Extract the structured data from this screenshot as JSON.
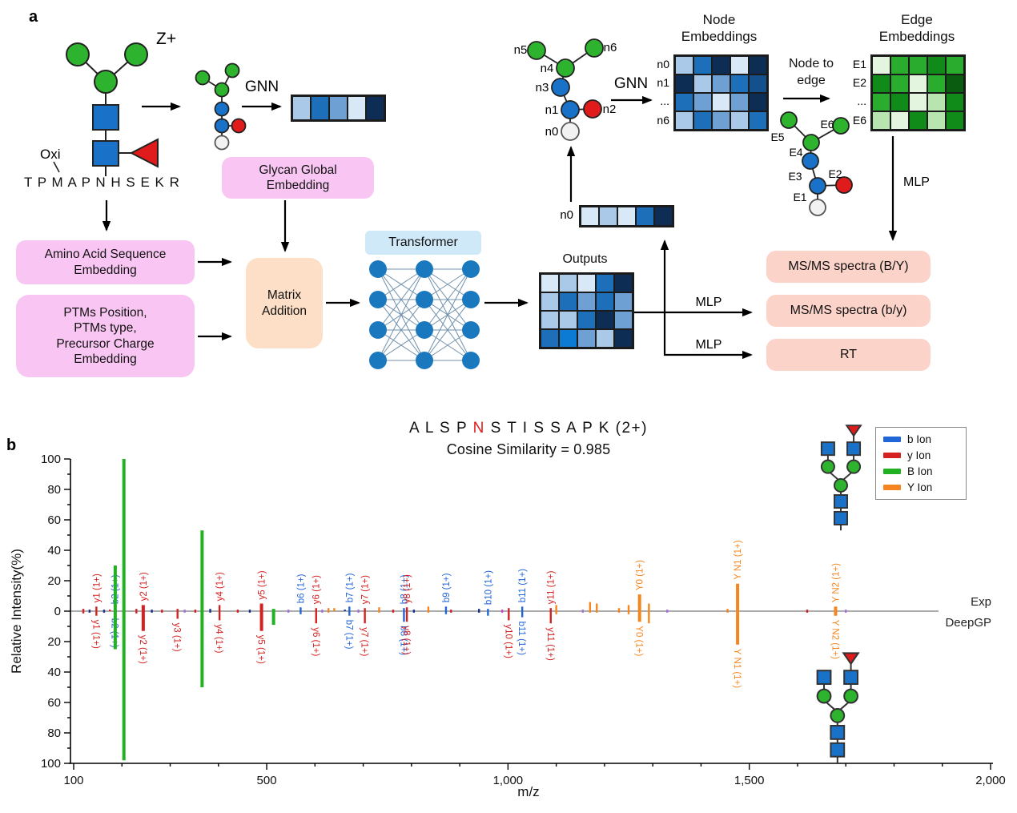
{
  "panel_a": {
    "label": "a",
    "z_plus": "Z+",
    "oxi": "Oxi",
    "peptide": "T P M A P N H S E K R",
    "gnn1": "GNN",
    "gnn2": "GNN",
    "node_to_edge_1": "Node to",
    "node_to_edge_2": "edge",
    "outputs_title": "Outputs",
    "mlp_by": "MLP",
    "mlp_rt": "MLP",
    "mlp_edge": "MLP",
    "n0_vector_label": "n0",
    "boxes": {
      "glycan_global_1": "Glycan Global",
      "glycan_global_2": "Embedding",
      "aa_1": "Amino Acid Sequence",
      "aa_2": "Embedding",
      "ptms_1": "PTMs Position,",
      "ptms_2": "PTMs type,",
      "ptms_3": "Precursor Charge",
      "ptms_4": "Embedding",
      "matrix_1": "Matrix",
      "matrix_2": "Addition",
      "transformer": "Transformer",
      "msms_BY": "MS/MS spectra (B/Y)",
      "msms_by": "MS/MS spectra (b/y)",
      "rt": "RT"
    },
    "node_graph_labels": {
      "n0": "n0",
      "n1": "n1",
      "n2": "n2",
      "n3": "n3",
      "n4": "n4",
      "n5": "n5",
      "n6": "n6"
    },
    "edge_graph_labels": {
      "E1": "E1",
      "E2": "E2",
      "E3": "E3",
      "E4": "E4",
      "E5": "E5",
      "E6": "E6"
    },
    "node_embeddings": {
      "title_1": "Node",
      "title_2": "Embeddings",
      "row_labels": [
        "n0",
        "n1",
        "...",
        "n6"
      ],
      "grid": [
        [
          "l",
          "mb",
          "dk",
          "vl",
          "dk"
        ],
        [
          "dk",
          "l",
          "m",
          "mb",
          "d"
        ],
        [
          "mb",
          "m",
          "vl",
          "m",
          "dk"
        ],
        [
          "l",
          "mb",
          "m",
          "l",
          "mb"
        ]
      ]
    },
    "edge_embeddings": {
      "title_1": "Edge",
      "title_2": "Embeddings",
      "row_labels": [
        "E1",
        "E2",
        "...",
        "E6"
      ],
      "grid": [
        [
          "gvl",
          "g",
          "g",
          "gd",
          "g"
        ],
        [
          "gd",
          "g",
          "gvl",
          "g",
          "gdk"
        ],
        [
          "g",
          "gd",
          "gvl",
          "gl",
          "gd"
        ],
        [
          "gl",
          "gvl",
          "gd",
          "gl",
          "gd"
        ]
      ]
    },
    "outputs_grid": [
      [
        "vl",
        "l",
        "vl",
        "mb",
        "dk"
      ],
      [
        "l",
        "mb",
        "m",
        "mb",
        "m"
      ],
      [
        "l",
        "l",
        "mb",
        "dk",
        "m"
      ],
      [
        "mb",
        "br",
        "m",
        "l",
        "dk"
      ]
    ],
    "glycan_vector": [
      "l",
      "mb",
      "m",
      "vl",
      "dk"
    ],
    "n0_vector": [
      "vl",
      "l",
      "vl",
      "mb",
      "dk"
    ]
  },
  "panel_b": {
    "label": "b",
    "exp_label": "Exp",
    "deepgp_label": "DeepGP"
  },
  "chart_data": {
    "type": "mirrored_ms2_spectrum",
    "title": {
      "seq_before": "A L S P ",
      "glyco_site": "N",
      "seq_after": " S T I S S A P K ",
      "charge": "(2+)"
    },
    "subtitle": "Cosine Similarity = 0.985",
    "xlabel": "m/z",
    "ylabel": "Relative Intensity(%)",
    "xlim": [
      100,
      2000
    ],
    "ylim": [
      -100,
      100
    ],
    "x_major_ticks": [
      100,
      500,
      1000,
      1500,
      2000
    ],
    "x_major_tick_labels": [
      "100",
      "500",
      "1,000",
      "1,500",
      "2,000"
    ],
    "x_minor_step": 100,
    "y_major_step": 20,
    "y_minor_step": 10,
    "top_series_label": "Exp",
    "bottom_series_label": "DeepGP",
    "legend": [
      {
        "label": "b Ion",
        "color": "#2166d8"
      },
      {
        "label": "y Ion",
        "color": "#d42020"
      },
      {
        "label": "B Ion",
        "color": "#22b122"
      },
      {
        "label": "Y Ion",
        "color": "#f5861f"
      }
    ],
    "peaks": [
      {
        "mz": 147.11,
        "ion": "y",
        "label": "y1",
        "exp": 3,
        "pred": -3,
        "lt": 1,
        "lb": 1
      },
      {
        "mz": 185.13,
        "ion": "b",
        "label": "b2",
        "exp": 2,
        "pred": -2,
        "lt": 1,
        "lb": 1
      },
      {
        "mz": 186.08,
        "ion": "B",
        "exp": 30,
        "pred": -25,
        "w": 4
      },
      {
        "mz": 204.09,
        "ion": "B",
        "exp": 100,
        "pred": -98,
        "w": 4
      },
      {
        "mz": 244.17,
        "ion": "y",
        "label": "y2",
        "exp": 4,
        "pred": -13,
        "lt": 1,
        "lb": 1,
        "w": 4
      },
      {
        "mz": 315.2,
        "ion": "y",
        "label": "y3",
        "exp": 1.5,
        "pred": -5,
        "lb": 1
      },
      {
        "mz": 366.14,
        "ion": "B",
        "exp": 53,
        "pred": -50,
        "w": 4
      },
      {
        "mz": 402.25,
        "ion": "y",
        "label": "y4",
        "exp": 4,
        "pred": -6,
        "lt": 1,
        "lb": 1
      },
      {
        "mz": 489.28,
        "ion": "y",
        "label": "y5",
        "exp": 5,
        "pred": -13,
        "lt": 1,
        "lb": 1,
        "w": 4
      },
      {
        "mz": 514.2,
        "ion": "B",
        "exp": 1.5,
        "pred": -9,
        "w": 4
      },
      {
        "mz": 570.31,
        "ion": "b",
        "label": "b6",
        "exp": 2.5,
        "pred": -2,
        "lt": 1
      },
      {
        "mz": 602.4,
        "ion": "y",
        "label": "y6",
        "exp": 2,
        "pred": -8,
        "lt": 1,
        "lb": 1
      },
      {
        "mz": 671.36,
        "ion": "b",
        "label": "b7",
        "exp": 3,
        "pred": -3,
        "lt": 1,
        "lb": 1
      },
      {
        "mz": 703.41,
        "ion": "y",
        "label": "y7",
        "exp": 2,
        "pred": -8,
        "lt": 1,
        "lb": 1
      },
      {
        "mz": 784.4,
        "ion": "b",
        "label": "b8",
        "exp": 2,
        "pred": -7,
        "lt": 1,
        "lb": 1
      },
      {
        "mz": 790.46,
        "ion": "y",
        "label": "y8",
        "exp": 2.5,
        "pred": -7,
        "lt": 1,
        "lb": 1
      },
      {
        "mz": 871.47,
        "ion": "b",
        "label": "b9",
        "exp": 3,
        "pred": -2,
        "lt": 1
      },
      {
        "mz": 958.5,
        "ion": "b",
        "label": "b10",
        "exp": 1.5,
        "pred": -3,
        "lt": 1
      },
      {
        "mz": 1001.56,
        "ion": "y",
        "label": "y10",
        "exp": 2,
        "pred": -6,
        "lb": 1
      },
      {
        "mz": 1029.57,
        "ion": "b",
        "label": "b11",
        "exp": 3,
        "pred": -4,
        "lt": 1,
        "lb": 1
      },
      {
        "mz": 1088.6,
        "ion": "y",
        "label": "y11",
        "exp": 2,
        "pred": -8,
        "lt": 1,
        "lb": 1
      },
      {
        "mz": 1272.66,
        "ion": "Y",
        "label": "Y0",
        "exp": 11,
        "pred": -7,
        "lt": 1,
        "lb": 1,
        "w": 4
      },
      {
        "mz": 1475.74,
        "ion": "Y",
        "label": "Y N1",
        "exp": 18,
        "pred": -22,
        "lt": 1,
        "lb": 1,
        "w": 4
      },
      {
        "mz": 1678.82,
        "ion": "Y",
        "label": "Y N2",
        "exp": 3,
        "pred": -3,
        "lt": 1,
        "lb": 1,
        "w": 4
      },
      {
        "mz": 120,
        "ion": "y",
        "exp": 1.5,
        "pred": -1.5
      },
      {
        "mz": 133,
        "ion": "navy",
        "exp": 1,
        "pred": -1
      },
      {
        "mz": 163,
        "ion": "navy",
        "exp": 1,
        "pred": -1
      },
      {
        "mz": 175,
        "ion": "y",
        "exp": 1,
        "pred": 0
      },
      {
        "mz": 230,
        "ion": "y",
        "exp": 1.5,
        "pred": -1.5
      },
      {
        "mz": 262,
        "ion": "navy",
        "exp": 1,
        "pred": -1
      },
      {
        "mz": 283,
        "ion": "y",
        "exp": 1,
        "pred": -1
      },
      {
        "mz": 330,
        "ion": "purple",
        "exp": 1,
        "pred": -1
      },
      {
        "mz": 352,
        "ion": "y",
        "exp": 1,
        "pred": -1
      },
      {
        "mz": 383,
        "ion": "navy",
        "exp": 1.5,
        "pred": -1
      },
      {
        "mz": 440,
        "ion": "y",
        "exp": 1,
        "pred": -1
      },
      {
        "mz": 465,
        "ion": "navy",
        "exp": 1,
        "pred": -1
      },
      {
        "mz": 545,
        "ion": "purple",
        "exp": 1,
        "pred": -1
      },
      {
        "mz": 615,
        "ion": "purple",
        "exp": 1,
        "pred": -1
      },
      {
        "mz": 628,
        "ion": "Y",
        "exp": 2,
        "pred": -1
      },
      {
        "mz": 640,
        "ion": "Y",
        "exp": 2,
        "pred": 0
      },
      {
        "mz": 662,
        "ion": "navy",
        "exp": 1,
        "pred": 0
      },
      {
        "mz": 690,
        "ion": "purple",
        "exp": 1,
        "pred": -1
      },
      {
        "mz": 733,
        "ion": "Y",
        "exp": 2.5,
        "pred": -1
      },
      {
        "mz": 762,
        "ion": "y",
        "exp": 1,
        "pred": -1
      },
      {
        "mz": 805,
        "ion": "navy",
        "exp": 1,
        "pred": -1
      },
      {
        "mz": 835,
        "ion": "Y",
        "exp": 3,
        "pred": -1
      },
      {
        "mz": 882,
        "ion": "y",
        "exp": 1,
        "pred": -1
      },
      {
        "mz": 940,
        "ion": "navy",
        "exp": 1.5,
        "pred": -1
      },
      {
        "mz": 988,
        "ion": "magenta",
        "exp": 1,
        "pred": -1
      },
      {
        "mz": 1100,
        "ion": "Y",
        "exp": 4,
        "pred": -2
      },
      {
        "mz": 1155,
        "ion": "purple",
        "exp": 1,
        "pred": -1
      },
      {
        "mz": 1170,
        "ion": "Y",
        "exp": 6,
        "pred": -1
      },
      {
        "mz": 1184,
        "ion": "Y",
        "exp": 5,
        "pred": -1
      },
      {
        "mz": 1230,
        "ion": "Y",
        "exp": 2,
        "pred": -1
      },
      {
        "mz": 1250,
        "ion": "Y",
        "exp": 4,
        "pred": -2
      },
      {
        "mz": 1292,
        "ion": "Y",
        "exp": 5,
        "pred": -8
      },
      {
        "mz": 1330,
        "ion": "purple",
        "exp": 1,
        "pred": -1
      },
      {
        "mz": 1455,
        "ion": "Y",
        "exp": 1.5,
        "pred": -1
      },
      {
        "mz": 1620,
        "ion": "y",
        "exp": 1,
        "pred": -1
      },
      {
        "mz": 1700,
        "ion": "purple",
        "exp": 1,
        "pred": -1
      }
    ]
  },
  "colors": {
    "palette": {
      "vl": "#d9e8f7",
      "l": "#aac9e8",
      "m": "#6fa0d4",
      "mb": "#1e6fba",
      "d": "#14508c",
      "dk": "#0d2d54",
      "br": "#0b7bd4",
      "gvl": "#e3f4df",
      "gl": "#b7e4af",
      "g": "#2aad2f",
      "gd": "#108a18",
      "gdk": "#0a5c10"
    },
    "ions": {
      "b": "#2166d8",
      "y": "#d42020",
      "B": "#22b122",
      "Y": "#f5861f",
      "navy": "#16338e",
      "purple": "#a86ede",
      "magenta": "#cc44cc"
    },
    "glycan": {
      "hexnac_blue": "#1a72c8",
      "man_green": "#2db32d",
      "fucose_red": "#e01b1b",
      "reducing_white": "#f2f2f2"
    }
  }
}
